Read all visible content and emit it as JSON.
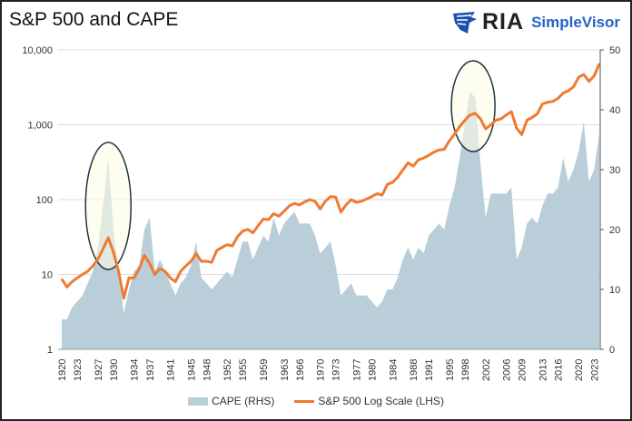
{
  "title": "S&P 500 and CAPE",
  "logo": {
    "mark": "RIA",
    "brand": "SimpleVisor",
    "icon": "eagle-icon",
    "brand_color": "#2464c8"
  },
  "legend": {
    "cape": "CAPE (RHS)",
    "sp": "S&P 500 Log Scale (LHS)"
  },
  "chart_data": {
    "type": "line",
    "title": "S&P 500 and CAPE",
    "x_tick_labels": [
      "1920",
      "1923",
      "1927",
      "1930",
      "1934",
      "1937",
      "1941",
      "1945",
      "1948",
      "1952",
      "1955",
      "1959",
      "1963",
      "1966",
      "1970",
      "1973",
      "1977",
      "1980",
      "1984",
      "1988",
      "1991",
      "1995",
      "1998",
      "2002",
      "2006",
      "2009",
      "2013",
      "2016",
      "2020",
      "2023"
    ],
    "left_axis": {
      "scale": "log",
      "range": [
        1,
        10000
      ],
      "tick_labels": [
        "1",
        "10",
        "100",
        "1,000",
        "10,000"
      ]
    },
    "right_axis": {
      "scale": "linear",
      "range": [
        0,
        50
      ],
      "tick_labels": [
        "0",
        "10",
        "20",
        "30",
        "40",
        "50"
      ]
    },
    "grid": "horizontal",
    "legend_position": "bottom",
    "colors": {
      "cape": "#b9ced9",
      "sp": "#ef7a32",
      "highlight_fill": "#fbfbe6",
      "highlight_stroke": "#1f3540"
    },
    "annotations": [
      {
        "type": "ellipse",
        "around": "1929 peak"
      },
      {
        "type": "ellipse",
        "around": "2000 peak"
      }
    ],
    "x": [
      1920,
      1921,
      1922,
      1923,
      1924,
      1925,
      1926,
      1927,
      1928,
      1929,
      1930,
      1931,
      1932,
      1933,
      1934,
      1935,
      1936,
      1937,
      1938,
      1939,
      1940,
      1941,
      1942,
      1943,
      1944,
      1945,
      1946,
      1947,
      1948,
      1949,
      1950,
      1951,
      1952,
      1953,
      1954,
      1955,
      1956,
      1957,
      1958,
      1959,
      1960,
      1961,
      1962,
      1963,
      1964,
      1965,
      1966,
      1967,
      1968,
      1969,
      1970,
      1971,
      1972,
      1973,
      1974,
      1975,
      1976,
      1977,
      1978,
      1979,
      1980,
      1981,
      1982,
      1983,
      1984,
      1985,
      1986,
      1987,
      1988,
      1989,
      1990,
      1991,
      1992,
      1993,
      1994,
      1995,
      1996,
      1997,
      1998,
      1999,
      2000,
      2001,
      2002,
      2003,
      2004,
      2005,
      2006,
      2007,
      2008,
      2009,
      2010,
      2011,
      2012,
      2013,
      2014,
      2015,
      2016,
      2017,
      2018,
      2019,
      2020,
      2021,
      2022,
      2023,
      2024
    ],
    "series": [
      {
        "name": "CAPE (RHS)",
        "type": "area",
        "axis": "right",
        "values": [
          5,
          5,
          7,
          8,
          9,
          11,
          13,
          17,
          24,
          32,
          20,
          13,
          6,
          10,
          13,
          14,
          20,
          22,
          13,
          15,
          13,
          11,
          9,
          11,
          12,
          14,
          18,
          12,
          11,
          10,
          11,
          12,
          13,
          12,
          15,
          18,
          18,
          15,
          17,
          19,
          18,
          22,
          19,
          21,
          22,
          23,
          21,
          21,
          21,
          19,
          16,
          17,
          18,
          14,
          9,
          10,
          11,
          9,
          9,
          9,
          8,
          7,
          8,
          10,
          10,
          12,
          15,
          17,
          15,
          17,
          16,
          19,
          20,
          21,
          20,
          24,
          27,
          32,
          38,
          43,
          42,
          31,
          22,
          26,
          26,
          26,
          26,
          27,
          15,
          17,
          21,
          22,
          21,
          24,
          26,
          26,
          27,
          32,
          28,
          30,
          33,
          38,
          28,
          30,
          36
        ]
      },
      {
        "name": "S&P 500 Log Scale (LHS)",
        "type": "line",
        "axis": "left",
        "values": [
          8.7,
          6.8,
          8,
          9,
          10,
          11,
          13,
          16,
          22,
          31,
          20,
          11,
          4.8,
          9,
          9,
          12,
          18,
          14,
          10,
          12,
          11,
          9,
          8,
          11,
          13,
          15,
          19,
          15,
          15,
          14.5,
          21,
          23,
          25,
          24,
          32,
          38,
          40,
          36,
          45,
          55,
          54,
          65,
          60,
          70,
          82,
          89,
          85,
          93,
          100,
          95,
          75,
          95,
          110,
          108,
          68,
          85,
          100,
          92,
          95,
          102,
          110,
          120,
          115,
          160,
          170,
          200,
          250,
          310,
          280,
          340,
          360,
          390,
          430,
          460,
          470,
          610,
          750,
          950,
          1150,
          1350,
          1420,
          1200,
          880,
          1000,
          1150,
          1200,
          1350,
          1500,
          900,
          740,
          1150,
          1250,
          1400,
          1900,
          2000,
          2050,
          2250,
          2650,
          2850,
          3200,
          4300,
          4700,
          3800,
          4500,
          6500
        ]
      }
    ]
  }
}
